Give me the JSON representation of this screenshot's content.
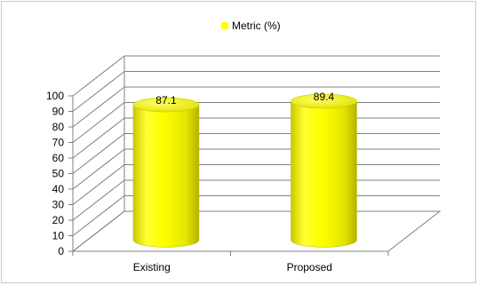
{
  "chart_data": {
    "type": "bar",
    "categories": [
      "Existing",
      "Proposed"
    ],
    "series": [
      {
        "name": "Metric (%)",
        "values": [
          87.1,
          89.4
        ],
        "color": "#ffff00"
      }
    ],
    "data_labels": [
      "87.1",
      "89.4"
    ],
    "ylim": [
      0,
      100
    ],
    "yticks": [
      "0",
      "10",
      "20",
      "30",
      "40",
      "50",
      "60",
      "70",
      "80",
      "90",
      "100"
    ],
    "grid": true,
    "legend_position": "top",
    "style": "3d-cylinder"
  }
}
